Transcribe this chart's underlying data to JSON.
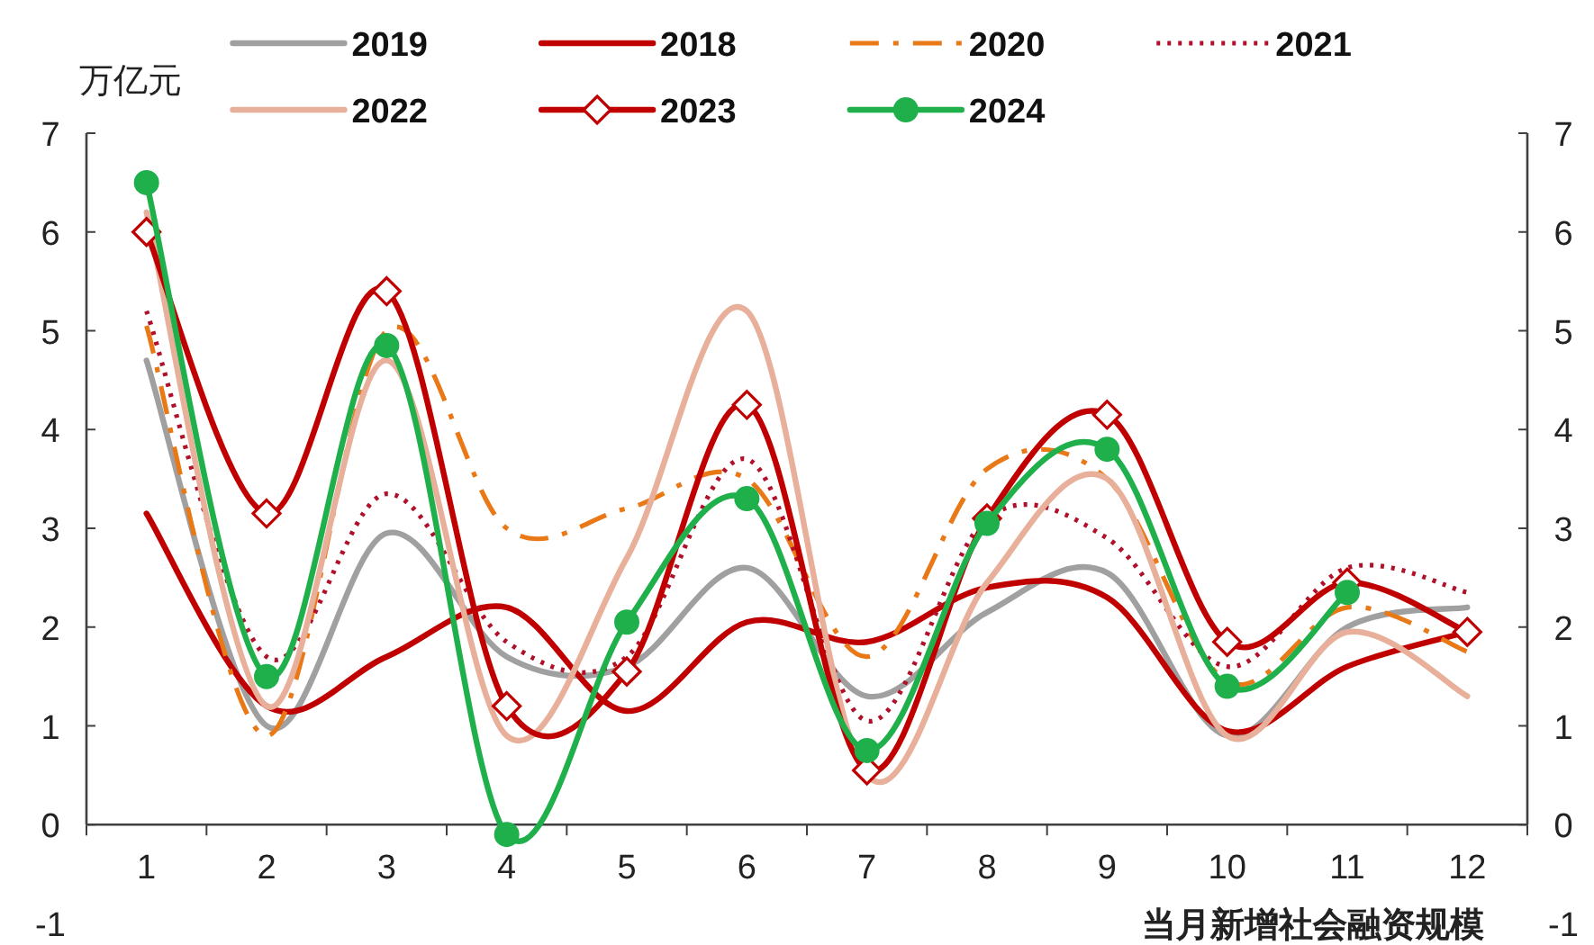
{
  "chart_data": {
    "type": "line",
    "ylabel": "万亿元",
    "xlabel": "当月新增社会融资规模",
    "legend": "top",
    "categories": [
      "1",
      "2",
      "3",
      "4",
      "5",
      "6",
      "7",
      "8",
      "9",
      "10",
      "11",
      "12"
    ],
    "ylim": [
      -1,
      7
    ],
    "yticks": [
      -1,
      0,
      1,
      2,
      3,
      4,
      5,
      6,
      7
    ],
    "y2lim": [
      -1,
      7
    ],
    "y2ticks": [
      -1,
      0,
      1,
      2,
      3,
      4,
      5,
      6,
      7
    ],
    "series": [
      {
        "name": "2019",
        "color": "#a0a0a0",
        "line_style": "solid",
        "values": [
          4.7,
          1.0,
          2.95,
          1.7,
          1.6,
          2.6,
          1.3,
          2.15,
          2.55,
          0.9,
          2.0,
          2.2
        ]
      },
      {
        "name": "2018",
        "color": "#c00000",
        "line_style": "solid",
        "values": [
          3.15,
          1.2,
          1.7,
          2.2,
          1.15,
          2.05,
          1.85,
          2.4,
          2.3,
          0.95,
          1.6,
          1.95
        ]
      },
      {
        "name": "2020",
        "color": "#e97817",
        "line_style": "dashdot",
        "values": [
          5.05,
          0.9,
          5.0,
          3.0,
          3.2,
          3.5,
          1.7,
          3.6,
          3.5,
          1.45,
          2.2,
          1.75
        ]
      },
      {
        "name": "2021",
        "color": "#b0102a",
        "line_style": "dotted",
        "values": [
          5.2,
          1.7,
          3.35,
          1.85,
          1.7,
          3.7,
          1.05,
          3.1,
          2.9,
          1.6,
          2.6,
          2.35
        ]
      },
      {
        "name": "2022",
        "color": "#e8b09a",
        "line_style": "solid",
        "values": [
          6.2,
          1.2,
          4.7,
          0.9,
          2.7,
          5.2,
          0.5,
          2.45,
          3.5,
          0.9,
          1.95,
          1.3
        ]
      },
      {
        "name": "2023",
        "color": "#c00000",
        "line_style": "solid",
        "marker": "diamond",
        "values": [
          6.0,
          3.15,
          5.4,
          1.2,
          1.55,
          4.25,
          0.55,
          3.1,
          4.15,
          1.85,
          2.45,
          1.95
        ]
      },
      {
        "name": "2024",
        "color": "#1fb04c",
        "line_style": "solid",
        "marker": "circle",
        "values": [
          6.5,
          1.5,
          4.85,
          -0.1,
          2.05,
          3.3,
          0.75,
          3.05,
          3.8,
          1.4,
          2.35,
          null
        ]
      }
    ]
  }
}
